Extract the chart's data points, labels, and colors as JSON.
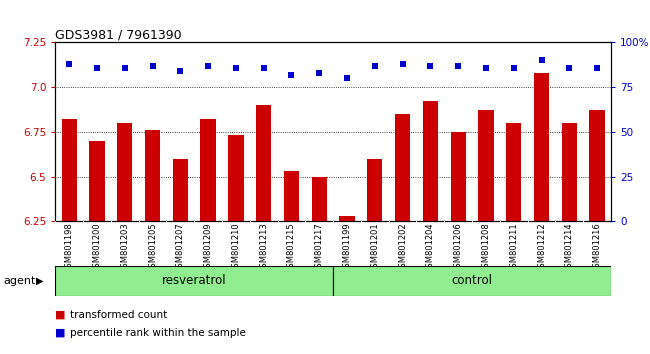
{
  "title": "GDS3981 / 7961390",
  "categories": [
    "GSM801198",
    "GSM801200",
    "GSM801203",
    "GSM801205",
    "GSM801207",
    "GSM801209",
    "GSM801210",
    "GSM801213",
    "GSM801215",
    "GSM801217",
    "GSM801199",
    "GSM801201",
    "GSM801202",
    "GSM801204",
    "GSM801206",
    "GSM801208",
    "GSM801211",
    "GSM801212",
    "GSM801214",
    "GSM801216"
  ],
  "bar_values": [
    6.82,
    6.7,
    6.8,
    6.76,
    6.6,
    6.82,
    6.73,
    6.9,
    6.53,
    6.5,
    6.28,
    6.6,
    6.85,
    6.92,
    6.75,
    6.87,
    6.8,
    7.08,
    6.8,
    6.87
  ],
  "dot_values": [
    88,
    86,
    86,
    87,
    84,
    87,
    86,
    86,
    82,
    83,
    80,
    87,
    88,
    87,
    87,
    86,
    86,
    90,
    86,
    86
  ],
  "bar_color": "#cc0000",
  "dot_color": "#0000cc",
  "ylim_left": [
    6.25,
    7.25
  ],
  "ylim_right": [
    0,
    100
  ],
  "yticks_left": [
    6.25,
    6.5,
    6.75,
    7.0,
    7.25
  ],
  "yticks_right": [
    0,
    25,
    50,
    75,
    100
  ],
  "ytick_labels_right": [
    "0",
    "25",
    "50",
    "75",
    "100%"
  ],
  "grid_values": [
    6.5,
    6.75,
    7.0
  ],
  "group1_label": "resveratrol",
  "group2_label": "control",
  "group1_count": 10,
  "group2_count": 10,
  "agent_label": "agent",
  "legend_bar_label": "transformed count",
  "legend_dot_label": "percentile rank within the sample",
  "background_color": "#ffffff",
  "plot_bg_color": "#ffffff",
  "tick_bg_color": "#c0c0c0",
  "group_bg_color": "#90ee90",
  "bar_width": 0.55
}
